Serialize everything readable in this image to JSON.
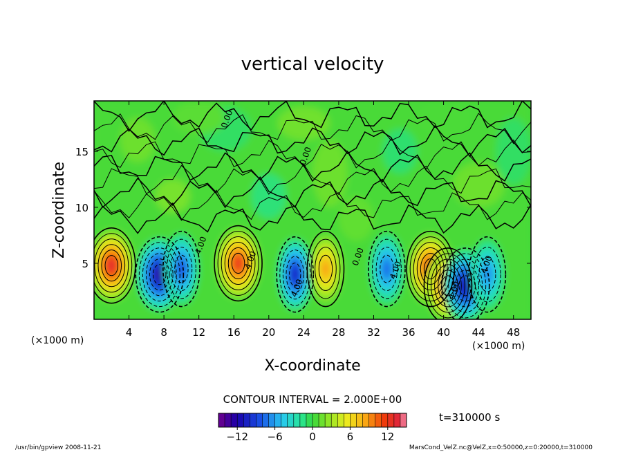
{
  "chart_data": {
    "type": "heatmap",
    "title": "vertical velocity",
    "xlabel": "X-coordinate",
    "ylabel": "Z-coordinate",
    "x_unit": "(×1000 m)",
    "z_unit": "(×1000 m)",
    "xlim": [
      0,
      50
    ],
    "ylim": [
      0,
      19.5
    ],
    "x_ticks": [
      4,
      8,
      12,
      16,
      20,
      24,
      28,
      32,
      36,
      40,
      44,
      48
    ],
    "y_ticks": [
      5,
      10,
      15
    ],
    "contour_interval_text": "CONTOUR INTERVAL = 2.000E+00",
    "contour_label": "0.00",
    "contour_label_alt": "4.00",
    "time_text": "t=310000 s",
    "colorbar": {
      "range": [
        -15,
        15
      ],
      "ticks": [
        -12,
        -6,
        0,
        6,
        12
      ]
    },
    "cells": [
      {
        "x": 2,
        "z": 4.8,
        "w": 13.5
      },
      {
        "x": 7.5,
        "z": 4.0,
        "w": -13
      },
      {
        "x": 10,
        "z": 4.5,
        "w": -9
      },
      {
        "x": 16.5,
        "z": 5.0,
        "w": 12.5
      },
      {
        "x": 23,
        "z": 4.0,
        "w": -11
      },
      {
        "x": 26.5,
        "z": 4.5,
        "w": 9
      },
      {
        "x": 33.5,
        "z": 4.5,
        "w": -8
      },
      {
        "x": 38.5,
        "z": 4.5,
        "w": 13
      },
      {
        "x": 40.5,
        "z": 3.0,
        "w": 12
      },
      {
        "x": 42.5,
        "z": 3.0,
        "w": -12
      },
      {
        "x": 45,
        "z": 4.0,
        "w": -7
      }
    ]
  },
  "footer": {
    "left": "/usr/bin/gpview  2008-11-21",
    "right": "MarsCond_VelZ.nc@VelZ,x=0:50000,z=0:20000,t=310000"
  }
}
